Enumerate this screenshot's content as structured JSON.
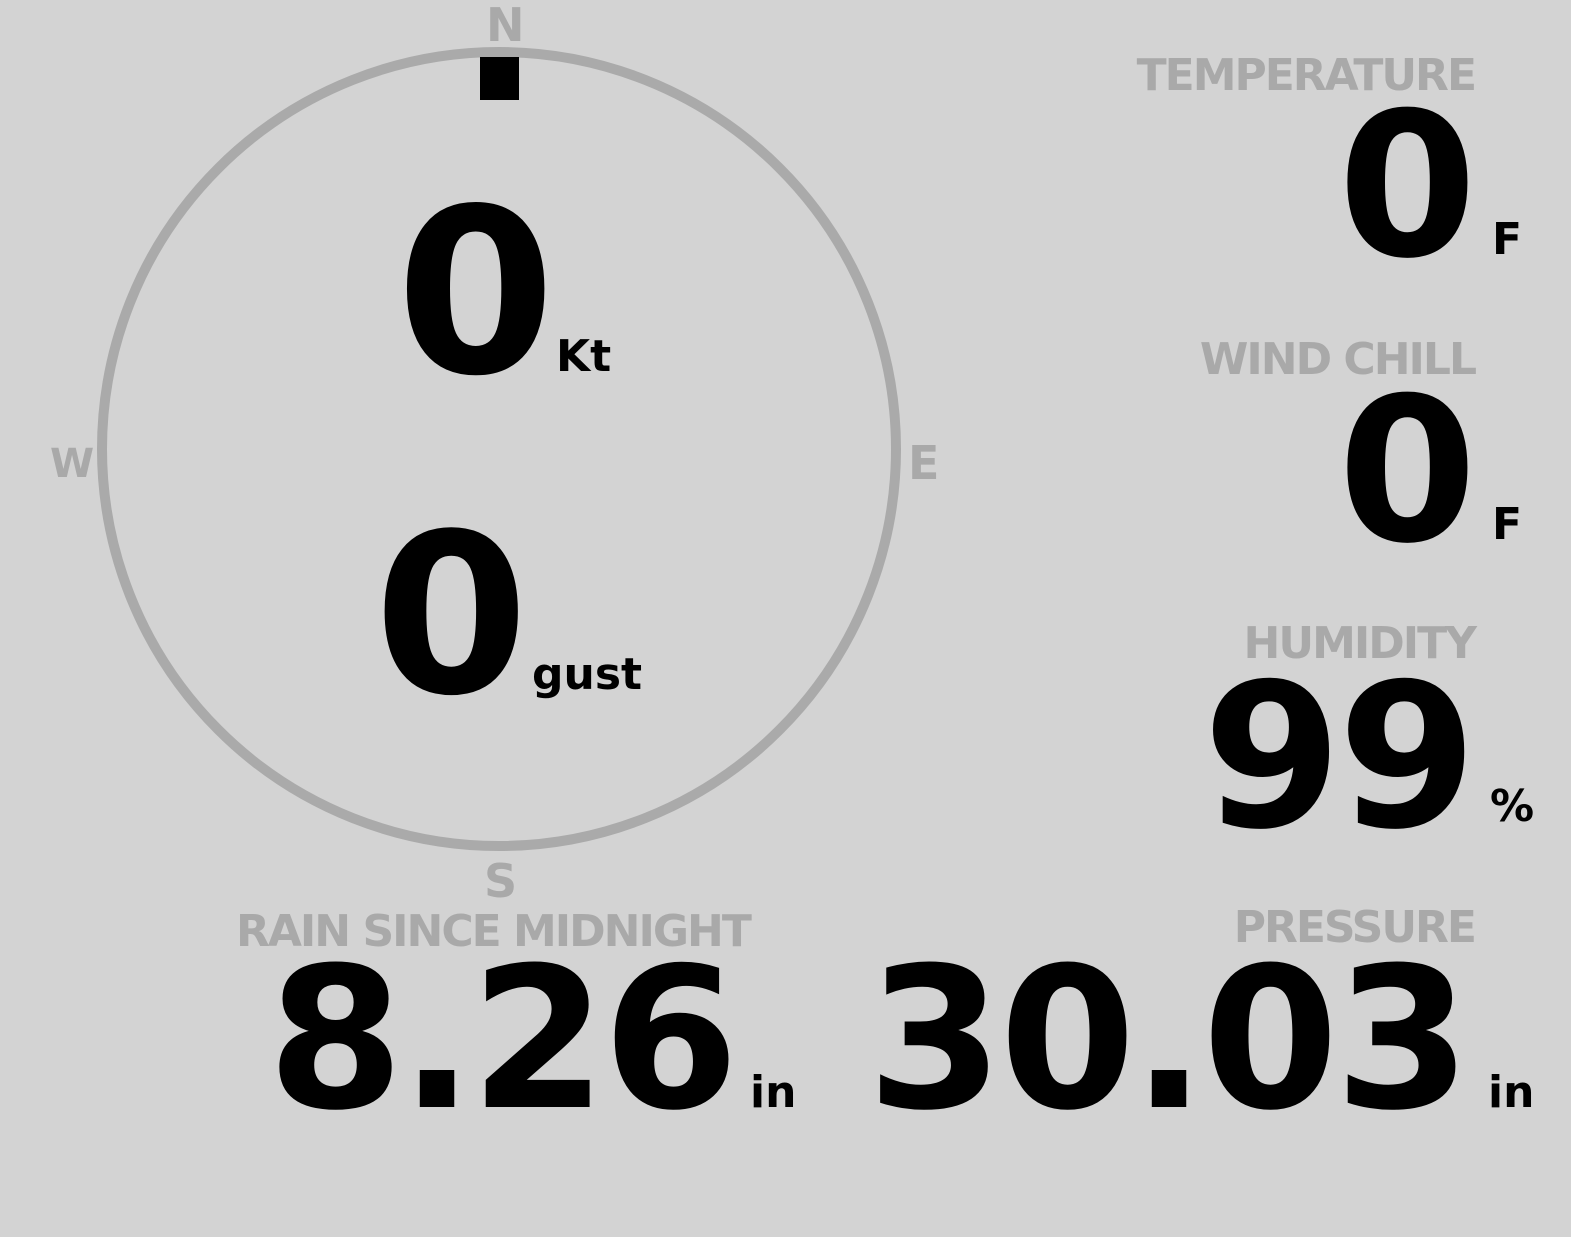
{
  "compass": {
    "north": "N",
    "south": "S",
    "east": "E",
    "west": "W",
    "wind_direction_deg": 0
  },
  "wind": {
    "speed": "0",
    "speed_unit": "Kt",
    "gust": "0",
    "gust_unit": "gust"
  },
  "temperature": {
    "label": "TEMPERATURE",
    "value": "0",
    "unit": "F"
  },
  "wind_chill": {
    "label": "WIND CHILL",
    "value": "0",
    "unit": "F"
  },
  "humidity": {
    "label": "HUMIDITY",
    "value": "99",
    "unit": "%"
  },
  "rain": {
    "label": "RAIN SINCE MIDNIGHT",
    "value": "8.26",
    "unit": "in"
  },
  "pressure": {
    "label": "PRESSURE",
    "value": "30.03",
    "unit": "in"
  },
  "colors": {
    "background": "#d3d3d3",
    "label": "#a9a9a9",
    "value": "#000000"
  }
}
